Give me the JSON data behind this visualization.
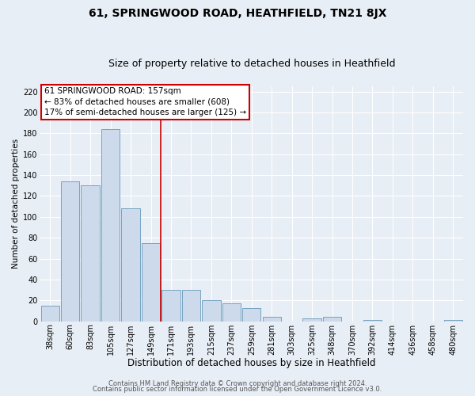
{
  "title": "61, SPRINGWOOD ROAD, HEATHFIELD, TN21 8JX",
  "subtitle": "Size of property relative to detached houses in Heathfield",
  "xlabel": "Distribution of detached houses by size in Heathfield",
  "ylabel": "Number of detached properties",
  "bar_labels": [
    "38sqm",
    "60sqm",
    "83sqm",
    "105sqm",
    "127sqm",
    "149sqm",
    "171sqm",
    "193sqm",
    "215sqm",
    "237sqm",
    "259sqm",
    "281sqm",
    "303sqm",
    "325sqm",
    "348sqm",
    "370sqm",
    "392sqm",
    "414sqm",
    "436sqm",
    "458sqm",
    "480sqm"
  ],
  "bar_values": [
    15,
    134,
    130,
    184,
    108,
    75,
    30,
    30,
    20,
    17,
    13,
    4,
    0,
    3,
    4,
    0,
    1,
    0,
    0,
    0,
    1
  ],
  "bar_color": "#ccdaeb",
  "bar_edge_color": "#6699bb",
  "background_color": "#e8eef5",
  "grid_color": "#ffffff",
  "ylim": [
    0,
    225
  ],
  "yticks": [
    0,
    20,
    40,
    60,
    80,
    100,
    120,
    140,
    160,
    180,
    200,
    220
  ],
  "vline_x_index": 5.5,
  "vline_color": "#cc0000",
  "annotation_title": "61 SPRINGWOOD ROAD: 157sqm",
  "annotation_line1": "← 83% of detached houses are smaller (608)",
  "annotation_line2": "17% of semi-detached houses are larger (125) →",
  "annotation_box_color": "#cc0000",
  "footer_line1": "Contains HM Land Registry data © Crown copyright and database right 2024.",
  "footer_line2": "Contains public sector information licensed under the Open Government Licence v3.0.",
  "title_fontsize": 10,
  "subtitle_fontsize": 9,
  "xlabel_fontsize": 8.5,
  "ylabel_fontsize": 7.5,
  "tick_fontsize": 7,
  "footer_fontsize": 6,
  "annotation_fontsize": 7.5
}
